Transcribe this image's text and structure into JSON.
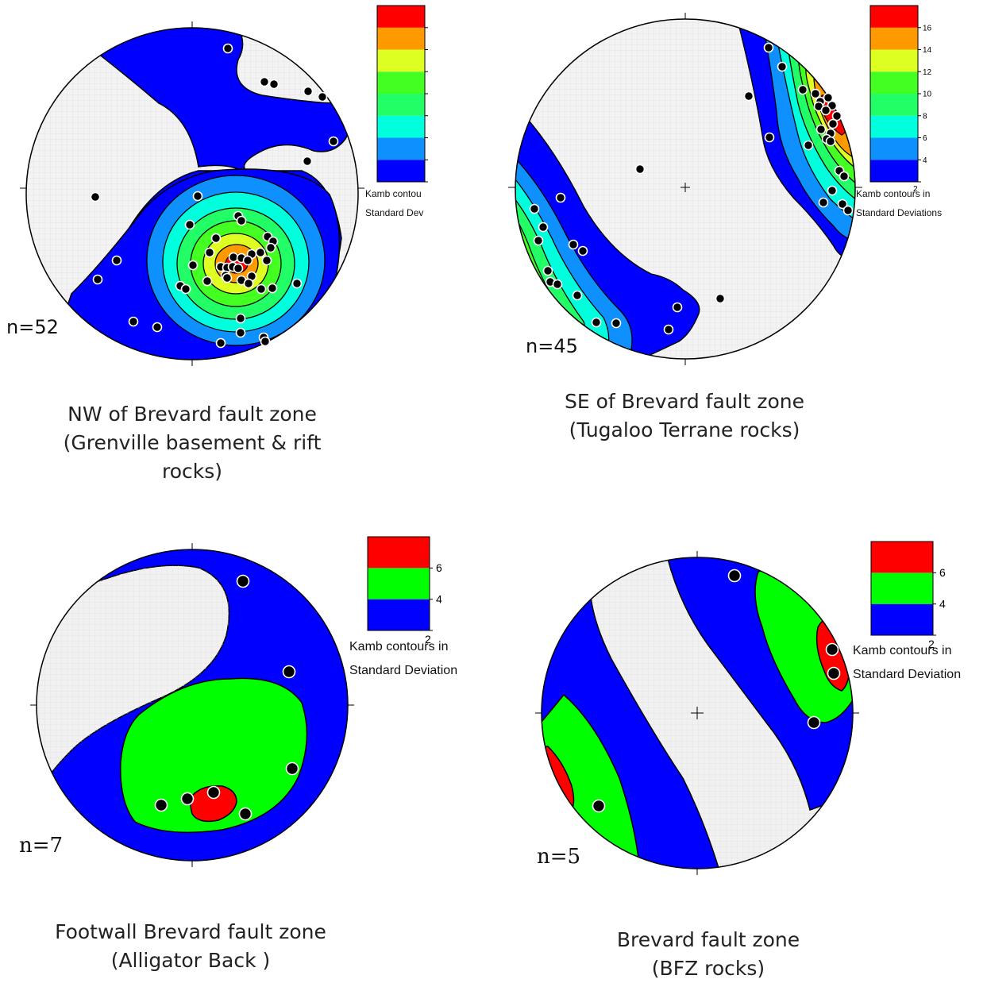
{
  "colors": {
    "level_2_4": "#0000ff",
    "level_4_6_6lvl": "#0f90ff",
    "level_6_8": "#00ffdd",
    "level_8_10": "#22ff66",
    "level_10_12": "#44ff22",
    "level_12_14": "#ddff22",
    "level_14_16": "#ff9900",
    "level_16_plus": "#ff0000",
    "green3": "#00ff00",
    "red3": "#ff0000",
    "net": "#e4e4e4"
  },
  "panels": [
    {
      "id": "nw",
      "n_label": "n=52",
      "caption": [
        "NW of Brevard fault zone",
        "(Grenville basement & rift",
        "rocks)"
      ],
      "legend": {
        "ticks": [
          "",
          "",
          "",
          "",
          "",
          "",
          "",
          ""
        ],
        "title": [
          "Kamb contou",
          "Standard Dev"
        ]
      }
    },
    {
      "id": "se",
      "n_label": "n=45",
      "caption": [
        "SE of Brevard fault zone",
        "(Tugaloo Terrane rocks)"
      ],
      "legend": {
        "ticks": [
          "2",
          "4",
          "6",
          "8",
          "10",
          "12",
          "14",
          "16"
        ],
        "title": [
          "Kamb contours in",
          "Standard Deviations"
        ]
      }
    },
    {
      "id": "footwall",
      "n_label": "n=7",
      "caption": [
        "Footwall Brevard fault zone",
        "(Alligator Back )"
      ],
      "legend": {
        "ticks": [
          "2",
          "4",
          "6"
        ],
        "title": [
          "Kamb contours in",
          "Standard Deviation"
        ]
      }
    },
    {
      "id": "bfz",
      "n_label": "n=5",
      "caption": [
        "Brevard fault zone",
        "(BFZ rocks)"
      ],
      "legend": {
        "ticks": [
          "2",
          "4",
          "6"
        ],
        "title": [
          "Kamb contours in",
          "Standard Deviation"
        ]
      }
    }
  ]
}
